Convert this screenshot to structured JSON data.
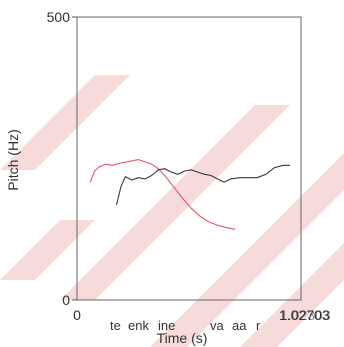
{
  "chart_data": {
    "type": "line",
    "title": "",
    "xlabel": "Time (s)",
    "ylabel": "Pitch (Hz)",
    "xlim": [
      0,
      1.02
    ],
    "ylim": [
      0,
      500
    ],
    "x_tick_labels": [
      "0",
      "1.02"
    ],
    "x_end_overlap_labels": [
      "1.02703",
      "1.02303"
    ],
    "y_tick_labels": [
      "0",
      "500"
    ],
    "grid": false,
    "legend": "none",
    "word_labels": [
      "te",
      "enk",
      "ine",
      "va",
      "aa",
      "r"
    ],
    "series": [
      {
        "color": "#e8556d",
        "points": [
          [
            0.06,
            208
          ],
          [
            0.08,
            228
          ],
          [
            0.1,
            235
          ],
          [
            0.13,
            240
          ],
          [
            0.16,
            238
          ],
          [
            0.2,
            242
          ],
          [
            0.24,
            245
          ],
          [
            0.28,
            248
          ],
          [
            0.31,
            244
          ],
          [
            0.34,
            240
          ],
          [
            0.37,
            232
          ],
          [
            0.4,
            220
          ],
          [
            0.44,
            200
          ],
          [
            0.48,
            180
          ],
          [
            0.52,
            162
          ],
          [
            0.56,
            148
          ],
          [
            0.6,
            138
          ],
          [
            0.64,
            132
          ],
          [
            0.68,
            128
          ],
          [
            0.72,
            125
          ]
        ]
      },
      {
        "color": "#3a3a3a",
        "points": [
          [
            0.18,
            168
          ],
          [
            0.2,
            200
          ],
          [
            0.22,
            218
          ],
          [
            0.25,
            212
          ],
          [
            0.28,
            216
          ],
          [
            0.31,
            214
          ],
          [
            0.34,
            220
          ],
          [
            0.37,
            230
          ],
          [
            0.4,
            232
          ],
          [
            0.43,
            226
          ],
          [
            0.46,
            222
          ],
          [
            0.49,
            228
          ],
          [
            0.52,
            230
          ],
          [
            0.55,
            226
          ],
          [
            0.58,
            222
          ],
          [
            0.61,
            220
          ],
          [
            0.64,
            214
          ],
          [
            0.67,
            208
          ],
          [
            0.7,
            214
          ],
          [
            0.74,
            216
          ],
          [
            0.78,
            216
          ],
          [
            0.82,
            216
          ],
          [
            0.86,
            222
          ],
          [
            0.9,
            234
          ],
          [
            0.94,
            238
          ],
          [
            0.97,
            238
          ]
        ]
      }
    ]
  },
  "colors": {
    "watermark": "#f3cccc",
    "axis": "#333333",
    "background": "#ffffff"
  }
}
